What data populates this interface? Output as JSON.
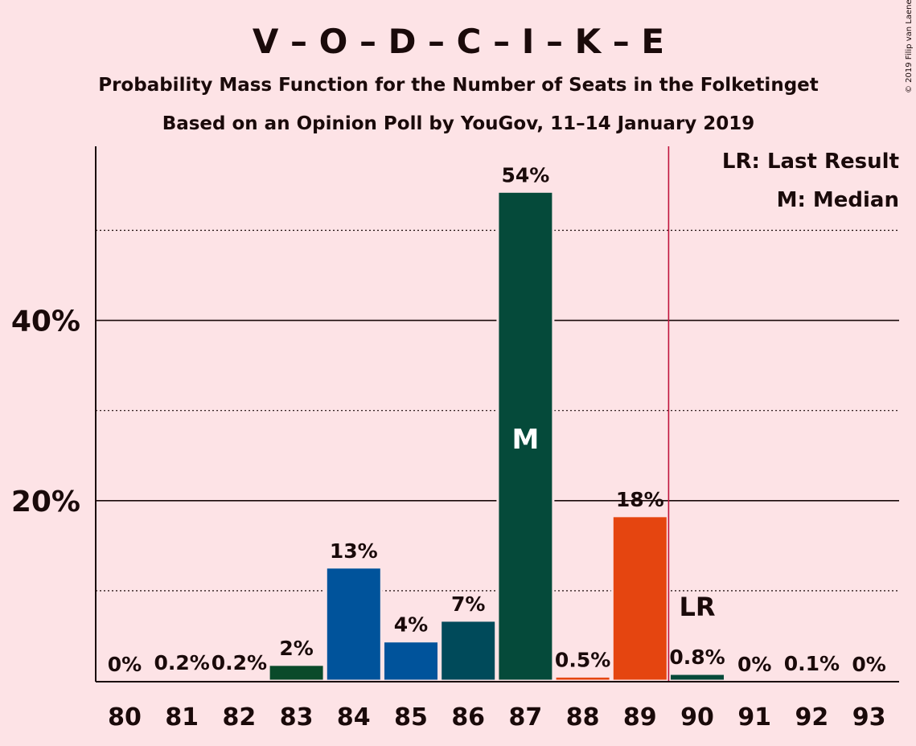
{
  "chart_data": {
    "type": "bar",
    "title": "V – O – D – C – I – K – E",
    "subtitle": "Probability Mass Function for the Number of Seats in the Folketinget",
    "subtitle2": "Based on an Opinion Poll by YouGov, 11–14 January 2019",
    "copyright": "© 2019 Filip van Laenen",
    "categories": [
      "80",
      "81",
      "82",
      "83",
      "84",
      "85",
      "86",
      "87",
      "88",
      "89",
      "90",
      "91",
      "92",
      "93"
    ],
    "values": [
      0.0,
      0.2,
      0.2,
      1.8,
      12.6,
      4.4,
      6.7,
      54.3,
      0.5,
      18.3,
      0.8,
      0.0,
      0.1,
      0.0
    ],
    "value_labels": [
      "0%",
      "0.2%",
      "0.2%",
      "2%",
      "13%",
      "4%",
      "7%",
      "54%",
      "0.5%",
      "18%",
      "0.8%",
      "0%",
      "0.1%",
      "0%"
    ],
    "bar_colors": [
      "#0a4a2a",
      "#0a4a2a",
      "#0a4a2a",
      "#0a4a2a",
      "#00539b",
      "#00539b",
      "#004a5a",
      "#054a3a",
      "#e54510",
      "#e54510",
      "#054a3a",
      "#054a3a",
      "#054a3a",
      "#054a3a"
    ],
    "ylim": [
      0,
      58
    ],
    "yticks_major": [
      20,
      40
    ],
    "ytick_labels": [
      "20%",
      "40%"
    ],
    "yticks_minor": [
      10,
      30,
      50
    ],
    "median_index": 7,
    "median_label": "M",
    "last_result_index": 10,
    "last_result_label": "LR",
    "last_result_line_color": "#c0143c",
    "legend": [
      "LR: Last Result",
      "M: Median"
    ],
    "legend_position": "top-right"
  }
}
